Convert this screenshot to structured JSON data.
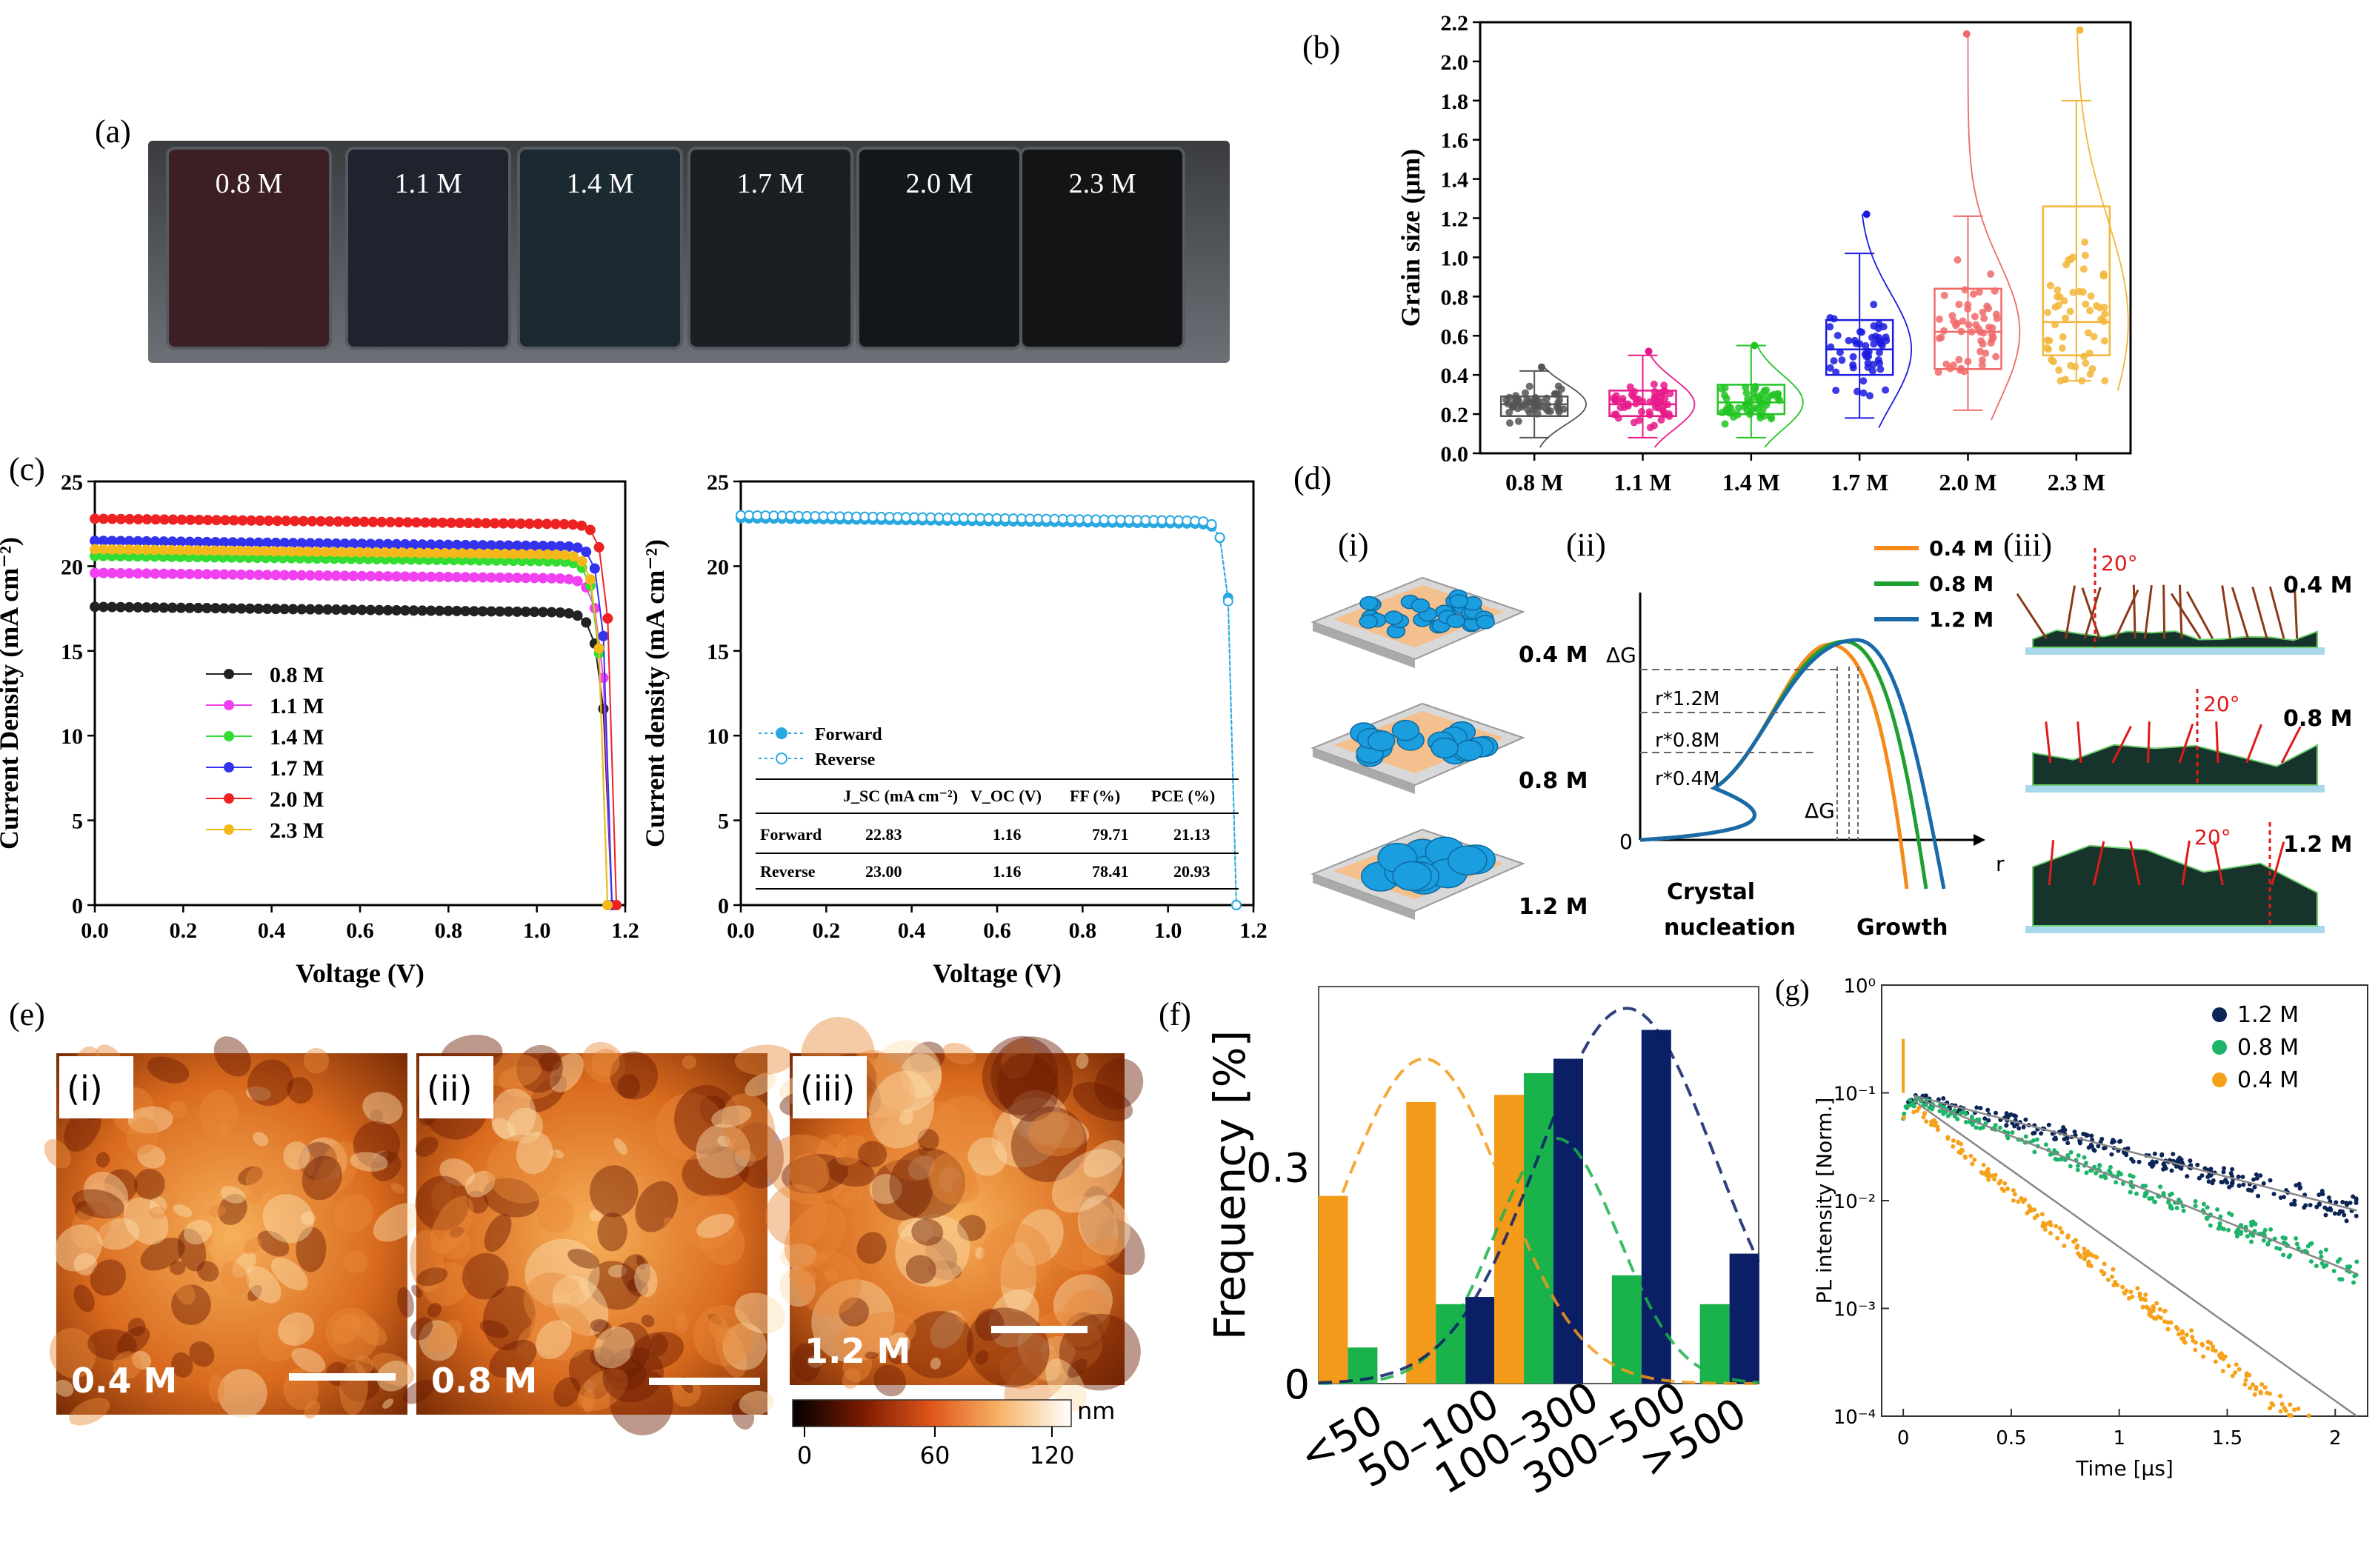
{
  "panel_labels": {
    "a": "(a)",
    "b": "(b)",
    "c": "(c)",
    "d": "(d)",
    "e": "(e)",
    "f": "(f)",
    "g": "(g)"
  },
  "panel_a": {
    "samples": [
      "0.8 M",
      "1.1 M",
      "1.4 M",
      "1.7 M",
      "2.0 M",
      "2.3 M"
    ],
    "colors": [
      "#3b1f24",
      "#20232e",
      "#1b2a30",
      "#1a1f24",
      "#131719",
      "#121416"
    ]
  },
  "panel_d": {
    "sub_i": "(i)",
    "sub_ii": "(ii)",
    "sub_iii": "(iii)",
    "i_labels": [
      "0.4 M",
      "0.8 M",
      "1.2 M"
    ],
    "ii_axis_y": "ΔG",
    "ii_axis_x": "r",
    "ii_legend": [
      "0.4 M",
      "0.8 M",
      "1.2 M"
    ],
    "ii_r_labels": [
      "r*1.2M",
      "r*0.8M",
      "r*0.4M"
    ],
    "ii_dg": "ΔG",
    "ii_xcats": [
      "Crystal",
      "nucleation",
      "Growth"
    ],
    "ii_zero": "0",
    "iii_labels": [
      "0.4 M",
      "0.8 M",
      "1.2 M"
    ],
    "iii_angle": [
      "20°",
      "20°",
      "20°"
    ]
  },
  "panel_e": {
    "sub": [
      "(i)",
      "(ii)",
      "(iii)"
    ],
    "conc": [
      "0.4 M",
      "0.8 M",
      "1.2 M"
    ],
    "colorbar_unit": "nm",
    "colorbar_ticks": [
      "0",
      "60",
      "120"
    ]
  },
  "chart_data": [
    {
      "id": "b",
      "type": "scatter",
      "title": "",
      "ylabel": "Grain size (μm)",
      "categories": [
        "0.8 M",
        "1.1 M",
        "1.4 M",
        "1.7 M",
        "2.0 M",
        "2.3 M"
      ],
      "ylim": [
        0,
        2.2
      ],
      "yticks": [
        "0.0",
        "0.2",
        "0.4",
        "0.6",
        "0.8",
        "1.0",
        "1.2",
        "1.4",
        "1.6",
        "1.8",
        "2.0",
        "2.2"
      ],
      "colors": [
        "#555555",
        "#e8198a",
        "#22c422",
        "#1a1ae0",
        "#f06a6a",
        "#f2b63a"
      ],
      "box": [
        {
          "q1": 0.19,
          "median": 0.25,
          "q3": 0.29,
          "whisker_low": 0.08,
          "whisker_high": 0.42
        },
        {
          "q1": 0.19,
          "median": 0.25,
          "q3": 0.32,
          "whisker_low": 0.08,
          "whisker_high": 0.5
        },
        {
          "q1": 0.2,
          "median": 0.26,
          "q3": 0.35,
          "whisker_low": 0.08,
          "whisker_high": 0.55
        },
        {
          "q1": 0.4,
          "median": 0.53,
          "q3": 0.68,
          "whisker_low": 0.18,
          "whisker_high": 1.02
        },
        {
          "q1": 0.43,
          "median": 0.62,
          "q3": 0.84,
          "whisker_low": 0.22,
          "whisker_high": 1.21
        },
        {
          "q1": 0.5,
          "median": 0.67,
          "q3": 1.26,
          "whisker_low": 0.37,
          "whisker_high": 1.8
        }
      ],
      "spread": [
        0.07,
        0.09,
        0.1,
        0.22,
        0.28,
        0.42
      ],
      "max_points": [
        0.44,
        0.52,
        0.55,
        1.22,
        2.14,
        2.16
      ]
    },
    {
      "id": "c1",
      "type": "line",
      "xlabel": "Voltage (V)",
      "ylabel": "Current Density (mA cm⁻²)",
      "xlim": [
        0,
        1.2
      ],
      "ylim": [
        0,
        25
      ],
      "xticks": [
        "0.0",
        "0.2",
        "0.4",
        "0.6",
        "0.8",
        "1.0",
        "1.2"
      ],
      "yticks": [
        "0",
        "5",
        "10",
        "15",
        "20",
        "25"
      ],
      "series": [
        {
          "name": "0.8 M",
          "color": "#222222",
          "jsc": 17.6,
          "voc": 1.17,
          "knee": 0.86
        },
        {
          "name": "1.1 M",
          "color": "#f040f0",
          "jsc": 19.6,
          "voc": 1.17,
          "knee": 0.88
        },
        {
          "name": "1.4 M",
          "color": "#33dd33",
          "jsc": 20.6,
          "voc": 1.16,
          "knee": 0.9
        },
        {
          "name": "1.7 M",
          "color": "#3333ee",
          "jsc": 21.5,
          "voc": 1.17,
          "knee": 0.92
        },
        {
          "name": "2.0 M",
          "color": "#ee2222",
          "jsc": 22.8,
          "voc": 1.18,
          "knee": 0.93
        },
        {
          "name": "2.3 M",
          "color": "#f5b81a",
          "jsc": 21.0,
          "voc": 1.16,
          "knee": 0.9
        }
      ]
    },
    {
      "id": "c2",
      "type": "line",
      "xlabel": "Voltage (V)",
      "ylabel": "Current density (mA cm⁻²)",
      "xlim": [
        0,
        1.2
      ],
      "ylim": [
        0,
        25
      ],
      "xticks": [
        "0.0",
        "0.2",
        "0.4",
        "0.6",
        "0.8",
        "1.0",
        "1.2"
      ],
      "yticks": [
        "0",
        "5",
        "10",
        "15",
        "20",
        "25"
      ],
      "series": [
        {
          "name": "Forward",
          "color": "#29a8e0",
          "jsc": 22.83,
          "voc": 1.16,
          "knee": 0.95
        },
        {
          "name": "Reverse",
          "color": "#29a8e0",
          "jsc": 23.0,
          "voc": 1.16,
          "knee": 0.94
        }
      ],
      "table": {
        "headers": [
          "",
          "J_SC (mA cm⁻²)",
          "V_OC (V)",
          "FF (%)",
          "PCE (%)"
        ],
        "rows": [
          [
            "Forward",
            "22.83",
            "1.16",
            "79.71",
            "21.13"
          ],
          [
            "Reverse",
            "23.00",
            "1.16",
            "78.41",
            "20.93"
          ]
        ]
      }
    },
    {
      "id": "f",
      "type": "bar",
      "ylabel": "Frequency [%]",
      "categories": [
        "<50",
        "50–100",
        "100–300",
        "300–500",
        ">500"
      ],
      "yticks": [
        "0",
        "0.3"
      ],
      "ylim": [
        0,
        0.55
      ],
      "series": [
        {
          "name": "0.4 M",
          "color": "#f39a1a",
          "values": [
            0.26,
            0.39,
            0.4,
            0.0,
            0.0
          ]
        },
        {
          "name": "0.8 M",
          "color": "#1ab24a",
          "values": [
            0.05,
            0.11,
            0.43,
            0.15,
            0.11
          ]
        },
        {
          "name": "1.2 M",
          "color": "#0a1f66",
          "values": [
            0.0,
            0.12,
            0.45,
            0.49,
            0.18
          ]
        }
      ]
    },
    {
      "id": "g",
      "type": "scatter",
      "xlabel": "Time [μs]",
      "ylabel": "PL intensity [Norm.]",
      "xlim": [
        -0.1,
        2.15
      ],
      "ylim_log10": [
        -4,
        0
      ],
      "xticks": [
        "0",
        "0.5",
        "1",
        "1.5",
        "2"
      ],
      "yticks": [
        "10⁰",
        "10⁻¹",
        "10⁻²",
        "10⁻³",
        "10⁻⁴"
      ],
      "series": [
        {
          "name": "1.2 M",
          "color": "#0d2456",
          "tau_log10_per_us": -0.52
        },
        {
          "name": "0.8 M",
          "color": "#1db46a",
          "tau_log10_per_us": -0.8
        },
        {
          "name": "0.4 M",
          "color": "#f5a21a",
          "tau_log10_per_us": -1.5
        }
      ]
    }
  ]
}
